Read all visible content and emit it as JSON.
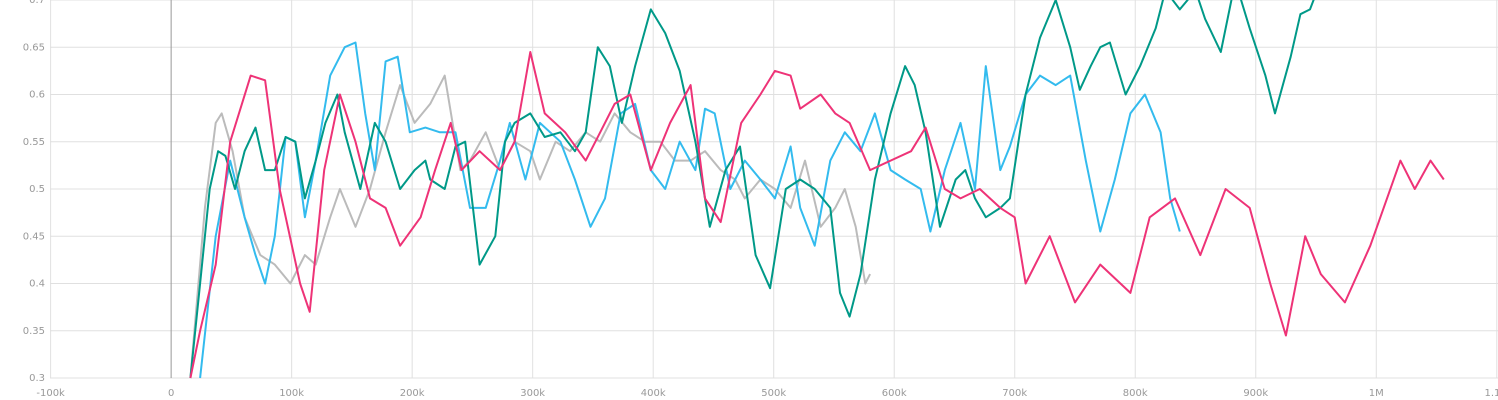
{
  "chart_data": {
    "type": "line",
    "xlim": [
      -142000,
      1101000
    ],
    "ylim": [
      0.3,
      0.7
    ],
    "xticks": [
      {
        "value": -100000,
        "label": "-100k"
      },
      0,
      {
        "value": 100000,
        "label": "100k"
      },
      {
        "value": 200000,
        "label": "200k"
      },
      {
        "value": 300000,
        "label": "300k"
      },
      {
        "value": 400000,
        "label": "400k"
      },
      {
        "value": 500000,
        "label": "500k"
      },
      {
        "value": 600000,
        "label": "600k"
      },
      {
        "value": 700000,
        "label": "700k"
      },
      {
        "value": 800000,
        "label": "800k"
      },
      {
        "value": 900000,
        "label": "900k"
      },
      {
        "value": 1000000,
        "label": "1M"
      },
      {
        "value": 1100000,
        "label": "1.1M"
      }
    ],
    "yticks": [
      0.3,
      0.35,
      0.4,
      0.45,
      0.5,
      0.55,
      0.6,
      0.65,
      0.7
    ],
    "grid": true,
    "series": [
      {
        "color": "#bbbbbb",
        "x": [
          16000,
          28000,
          37000,
          42000,
          51000,
          61000,
          74000,
          86000,
          99000,
          111000,
          120000,
          132000,
          140000,
          153000,
          165000,
          178000,
          190000,
          202000,
          215000,
          227000,
          240000,
          248000,
          261000,
          273000,
          285000,
          298000,
          306000,
          319000,
          331000,
          344000,
          356000,
          368000,
          381000,
          393000,
          406000,
          418000,
          431000,
          443000,
          456000,
          468000,
          476000,
          489000,
          501000,
          514000,
          526000,
          539000,
          551000,
          559000,
          568000,
          576000,
          580000
        ],
        "values": [
          0.3,
          0.48,
          0.57,
          0.58,
          0.54,
          0.47,
          0.43,
          0.42,
          0.4,
          0.43,
          0.42,
          0.47,
          0.5,
          0.46,
          0.5,
          0.56,
          0.61,
          0.57,
          0.59,
          0.62,
          0.52,
          0.53,
          0.56,
          0.52,
          0.55,
          0.54,
          0.51,
          0.55,
          0.54,
          0.56,
          0.55,
          0.58,
          0.56,
          0.55,
          0.55,
          0.53,
          0.53,
          0.54,
          0.52,
          0.51,
          0.49,
          0.51,
          0.5,
          0.48,
          0.53,
          0.46,
          0.48,
          0.5,
          0.46,
          0.4,
          0.41
        ]
      },
      {
        "color": "#33bbee",
        "x": [
          24000,
          37000,
          49000,
          61000,
          70000,
          78000,
          86000,
          95000,
          103000,
          111000,
          120000,
          132000,
          144000,
          153000,
          161000,
          169000,
          178000,
          188000,
          198000,
          211000,
          223000,
          236000,
          248000,
          261000,
          273000,
          281000,
          294000,
          306000,
          323000,
          335000,
          348000,
          360000,
          373000,
          385000,
          398000,
          410000,
          422000,
          435000,
          443000,
          451000,
          464000,
          476000,
          489000,
          501000,
          514000,
          522000,
          534000,
          547000,
          559000,
          572000,
          584000,
          597000,
          609000,
          622000,
          630000,
          642000,
          655000,
          667000,
          676000,
          688000,
          696000,
          709000,
          721000,
          734000,
          746000,
          759000,
          771000,
          783000,
          796000,
          808000,
          821000,
          829000,
          837000
        ],
        "values": [
          0.3,
          0.45,
          0.53,
          0.47,
          0.43,
          0.4,
          0.45,
          0.555,
          0.55,
          0.47,
          0.53,
          0.62,
          0.65,
          0.655,
          0.58,
          0.52,
          0.635,
          0.64,
          0.56,
          0.565,
          0.56,
          0.56,
          0.48,
          0.48,
          0.53,
          0.57,
          0.51,
          0.57,
          0.55,
          0.51,
          0.46,
          0.49,
          0.58,
          0.59,
          0.52,
          0.5,
          0.55,
          0.52,
          0.585,
          0.58,
          0.5,
          0.53,
          0.51,
          0.49,
          0.545,
          0.48,
          0.44,
          0.53,
          0.56,
          0.54,
          0.58,
          0.52,
          0.51,
          0.5,
          0.455,
          0.52,
          0.57,
          0.5,
          0.63,
          0.52,
          0.545,
          0.6,
          0.62,
          0.61,
          0.62,
          0.53,
          0.455,
          0.51,
          0.58,
          0.6,
          0.56,
          0.49,
          0.455
        ]
      },
      {
        "color": "#009988",
        "x": [
          16000,
          24000,
          32000,
          39000,
          45000,
          53000,
          61000,
          70000,
          78000,
          86000,
          95000,
          103000,
          111000,
          120000,
          128000,
          138000,
          144000,
          157000,
          169000,
          178000,
          190000,
          202000,
          211000,
          215000,
          227000,
          236000,
          244000,
          256000,
          269000,
          277000,
          285000,
          298000,
          310000,
          323000,
          335000,
          344000,
          354000,
          364000,
          374000,
          385000,
          398000,
          410000,
          422000,
          435000,
          447000,
          460000,
          472000,
          485000,
          497000,
          510000,
          522000,
          534000,
          547000,
          555000,
          563000,
          572000,
          584000,
          597000,
          609000,
          617000,
          626000,
          638000,
          651000,
          659000,
          667000,
          676000,
          688000,
          696000,
          709000,
          721000,
          734000,
          746000,
          754000,
          763000,
          771000,
          779000,
          792000,
          804000,
          817000,
          825000,
          837000,
          850000,
          858000,
          871000,
          883000,
          895000,
          908000,
          916000,
          929000,
          937000,
          945000,
          954000
        ],
        "values": [
          0.3,
          0.4,
          0.5,
          0.54,
          0.535,
          0.5,
          0.54,
          0.565,
          0.52,
          0.52,
          0.555,
          0.55,
          0.49,
          0.53,
          0.57,
          0.6,
          0.56,
          0.5,
          0.57,
          0.55,
          0.5,
          0.52,
          0.53,
          0.51,
          0.5,
          0.545,
          0.55,
          0.42,
          0.45,
          0.55,
          0.57,
          0.58,
          0.555,
          0.56,
          0.54,
          0.56,
          0.65,
          0.63,
          0.57,
          0.63,
          0.69,
          0.665,
          0.625,
          0.55,
          0.46,
          0.52,
          0.545,
          0.43,
          0.395,
          0.5,
          0.51,
          0.5,
          0.48,
          0.39,
          0.365,
          0.41,
          0.51,
          0.58,
          0.63,
          0.61,
          0.56,
          0.46,
          0.51,
          0.52,
          0.49,
          0.47,
          0.48,
          0.49,
          0.6,
          0.66,
          0.7,
          0.65,
          0.605,
          0.63,
          0.65,
          0.655,
          0.6,
          0.63,
          0.67,
          0.71,
          0.69,
          0.71,
          0.68,
          0.645,
          0.72,
          0.67,
          0.62,
          0.58,
          0.64,
          0.685,
          0.69,
          0.72
        ]
      },
      {
        "color": "#ee3377",
        "x": [
          16000,
          24000,
          37000,
          49000,
          66000,
          78000,
          90000,
          107000,
          115000,
          127000,
          140000,
          153000,
          165000,
          178000,
          190000,
          207000,
          219000,
          232000,
          241000,
          256000,
          273000,
          285000,
          298000,
          310000,
          327000,
          344000,
          356000,
          368000,
          381000,
          398000,
          414000,
          431000,
          443000,
          456000,
          473000,
          489000,
          501000,
          514000,
          522000,
          539000,
          551000,
          563000,
          580000,
          597000,
          614000,
          626000,
          642000,
          655000,
          671000,
          688000,
          700000,
          709000,
          729000,
          750000,
          771000,
          796000,
          812000,
          833000,
          854000,
          875000,
          895000,
          912000,
          925000,
          941000,
          954000,
          974000,
          995000,
          1020000,
          1032000,
          1045000,
          1056000
        ],
        "values": [
          0.3,
          0.35,
          0.42,
          0.55,
          0.62,
          0.615,
          0.5,
          0.4,
          0.37,
          0.52,
          0.6,
          0.55,
          0.49,
          0.48,
          0.44,
          0.47,
          0.52,
          0.57,
          0.52,
          0.54,
          0.52,
          0.55,
          0.645,
          0.58,
          0.56,
          0.53,
          0.56,
          0.59,
          0.6,
          0.52,
          0.57,
          0.61,
          0.49,
          0.465,
          0.57,
          0.6,
          0.625,
          0.62,
          0.585,
          0.6,
          0.58,
          0.57,
          0.52,
          0.53,
          0.54,
          0.565,
          0.5,
          0.49,
          0.5,
          0.48,
          0.47,
          0.4,
          0.45,
          0.38,
          0.42,
          0.39,
          0.47,
          0.49,
          0.43,
          0.5,
          0.48,
          0.4,
          0.345,
          0.45,
          0.41,
          0.38,
          0.44,
          0.53,
          0.5,
          0.53,
          0.51
        ]
      }
    ]
  }
}
